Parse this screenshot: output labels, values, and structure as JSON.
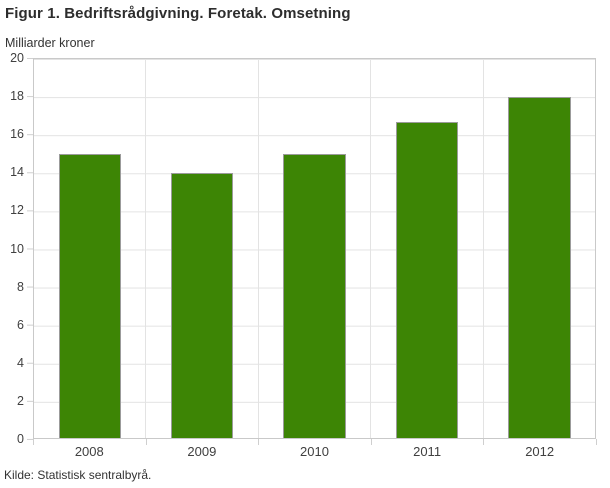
{
  "page": {
    "title": "Figur 1. Bedriftsrådgivning. Foretak. Omsetning",
    "unit_label": "Milliarder kroner",
    "source": "Kilde: Statistisk sentralbyrå."
  },
  "chart_data": {
    "type": "bar",
    "title": "Figur 1. Bedriftsrådgivning. Foretak. Omsetning",
    "ylabel": "Milliarder kroner",
    "xlabel": "",
    "categories": [
      "2008",
      "2009",
      "2010",
      "2011",
      "2012"
    ],
    "values": [
      15,
      14,
      15,
      16.7,
      18
    ],
    "ylim": [
      0,
      20
    ],
    "ytick_step": 2,
    "yticks": [
      0,
      2,
      4,
      6,
      8,
      10,
      12,
      14,
      16,
      18,
      20
    ],
    "grid": true,
    "legend": "none",
    "bar_color": "#3d8505",
    "bar_border_color": "#9b9b9b",
    "grid_color": "#e3e3e3",
    "frame_color": "#c9c9c9",
    "source": "Kilde: Statistisk sentralbyrå."
  }
}
